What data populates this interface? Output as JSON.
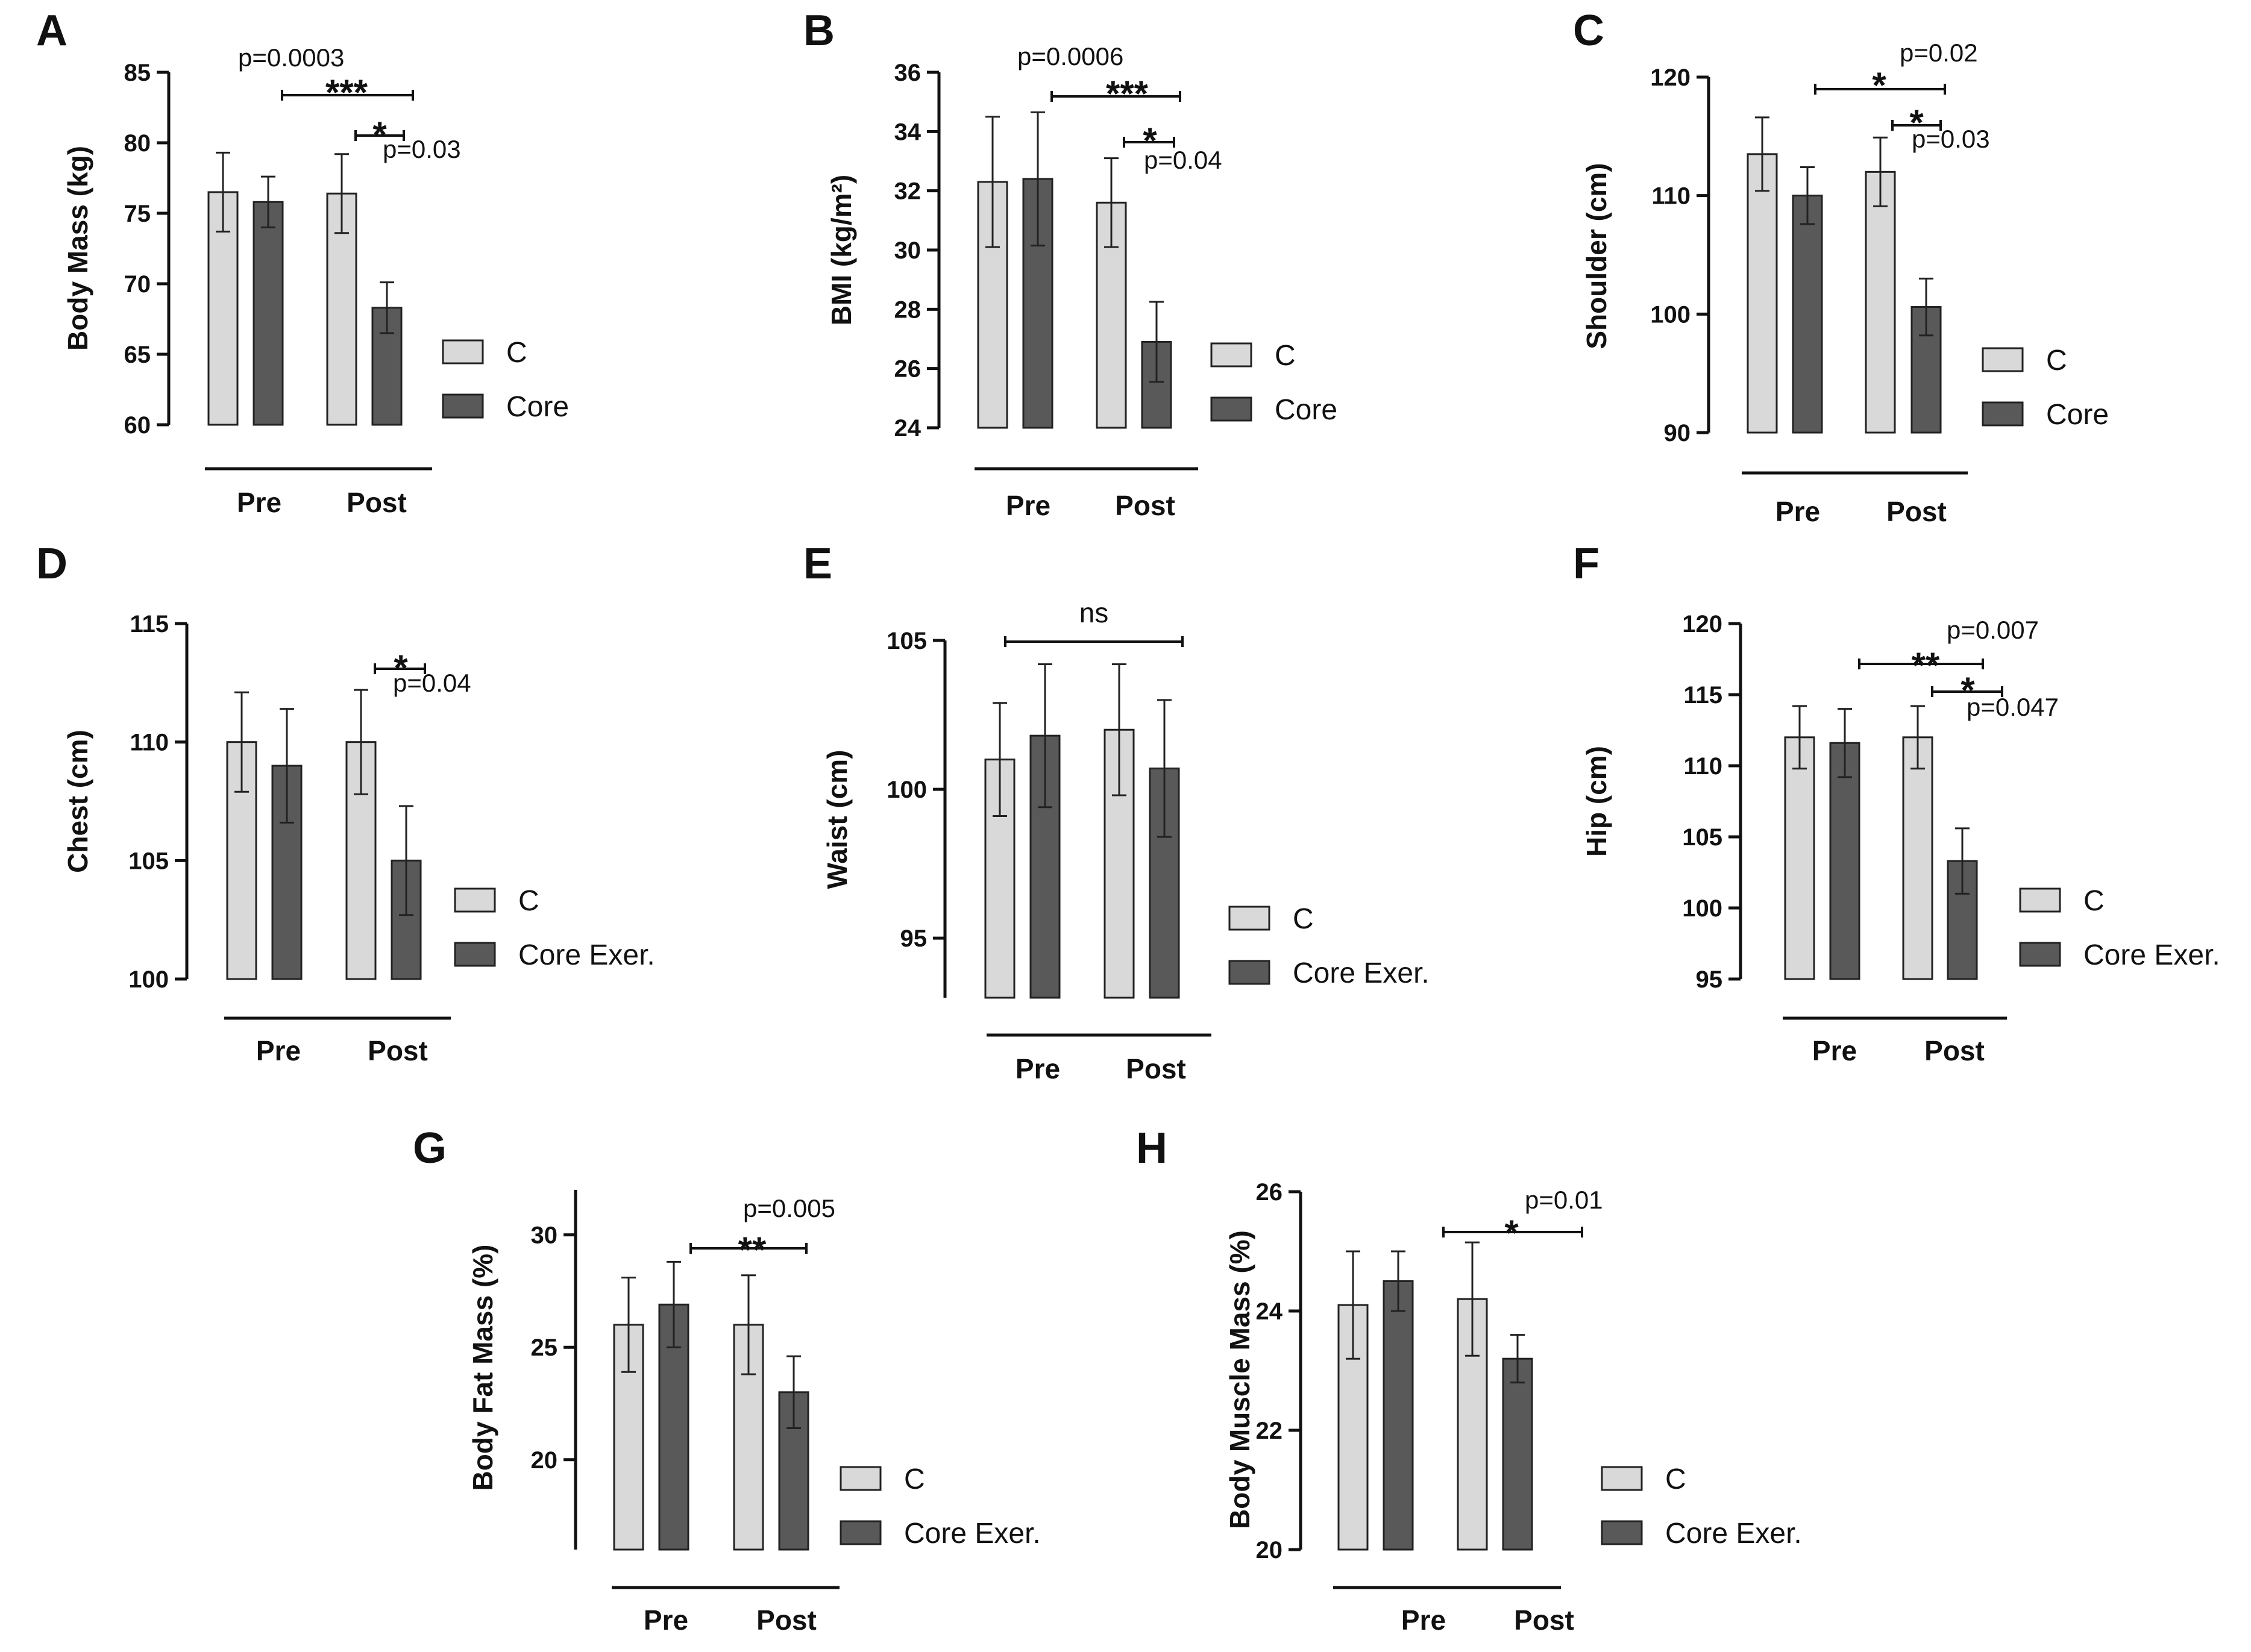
{
  "figure": {
    "bar_colors": {
      "control": "#d9d9d9",
      "core": "#595959"
    },
    "axis_color": "#111111"
  },
  "chart_data": [
    {
      "panel": "A",
      "type": "bar",
      "ylabel": "Body Mass (kg)",
      "categories": [
        "Pre",
        "Post"
      ],
      "ylim": [
        60,
        85
      ],
      "yticks": [
        60,
        65,
        70,
        75,
        80,
        85
      ],
      "series": [
        {
          "name": "C",
          "values": [
            76.5,
            76.4
          ],
          "errors": [
            2.8,
            2.8
          ]
        },
        {
          "name": "Core",
          "values": [
            75.8,
            68.3
          ],
          "errors": [
            1.8,
            1.8
          ]
        }
      ],
      "legend": [
        "C",
        "Core"
      ],
      "annotations": [
        {
          "stars": "***",
          "p": "p=0.0003",
          "from": [
            0,
            1
          ],
          "to": [
            1,
            1
          ]
        },
        {
          "stars": "*",
          "p": "p=0.03",
          "from": [
            1,
            0
          ],
          "to": [
            1,
            1
          ]
        }
      ]
    },
    {
      "panel": "B",
      "type": "bar",
      "ylabel": "BMI (kg/m²)",
      "categories": [
        "Pre",
        "Post"
      ],
      "ylim": [
        24,
        36
      ],
      "yticks": [
        24,
        26,
        28,
        30,
        32,
        34,
        36
      ],
      "series": [
        {
          "name": "C",
          "values": [
            32.3,
            31.6
          ],
          "errors": [
            2.2,
            1.5
          ]
        },
        {
          "name": "Core",
          "values": [
            32.4,
            26.9
          ],
          "errors": [
            2.25,
            1.35
          ]
        }
      ],
      "legend": [
        "C",
        "Core"
      ],
      "annotations": [
        {
          "stars": "***",
          "p": "p=0.0006",
          "from": [
            0,
            1
          ],
          "to": [
            1,
            1
          ]
        },
        {
          "stars": "*",
          "p": "p=0.04",
          "from": [
            1,
            0
          ],
          "to": [
            1,
            1
          ]
        }
      ]
    },
    {
      "panel": "C",
      "type": "bar",
      "ylabel": "Shoulder (cm)",
      "categories": [
        "Pre",
        "Post"
      ],
      "ylim": [
        90,
        120
      ],
      "yticks": [
        90,
        100,
        110,
        120
      ],
      "series": [
        {
          "name": "C",
          "values": [
            113.5,
            112.0
          ],
          "errors": [
            3.1,
            2.9
          ]
        },
        {
          "name": "Core",
          "values": [
            110.0,
            100.6
          ],
          "errors": [
            2.4,
            2.4
          ]
        }
      ],
      "legend": [
        "C",
        "Core"
      ],
      "annotations": [
        {
          "stars": "*",
          "p": "p=0.02",
          "from": [
            0,
            1
          ],
          "to": [
            1,
            1
          ]
        },
        {
          "stars": "*",
          "p": "p=0.03",
          "from": [
            1,
            0
          ],
          "to": [
            1,
            1
          ]
        }
      ]
    },
    {
      "panel": "D",
      "type": "bar",
      "ylabel": "Chest (cm)",
      "categories": [
        "Pre",
        "Post"
      ],
      "ylim": [
        100,
        115
      ],
      "yticks": [
        100,
        105,
        110,
        115
      ],
      "series": [
        {
          "name": "C",
          "values": [
            110.0,
            110.0
          ],
          "errors": [
            2.1,
            2.2
          ]
        },
        {
          "name": "Core Exer.",
          "values": [
            109.0,
            105.0
          ],
          "errors": [
            2.4,
            2.3
          ]
        }
      ],
      "legend": [
        "C",
        "Core Exer."
      ],
      "annotations": [
        {
          "stars": "*",
          "p": "p=0.04",
          "from": [
            1,
            0
          ],
          "to": [
            1,
            1
          ]
        }
      ]
    },
    {
      "panel": "E",
      "type": "bar",
      "ylabel": "Waist (cm)",
      "categories": [
        "Pre",
        "Post"
      ],
      "ylim": [
        93,
        105
      ],
      "yticks": [
        95,
        100,
        105
      ],
      "series": [
        {
          "name": "C",
          "values": [
            101.0,
            102.0
          ],
          "errors": [
            1.9,
            2.2
          ]
        },
        {
          "name": "Core Exer.",
          "values": [
            101.8,
            100.7
          ],
          "errors": [
            2.4,
            2.3
          ]
        }
      ],
      "legend": [
        "C",
        "Core Exer."
      ],
      "annotations": [
        {
          "stars": "ns",
          "p": "",
          "from": [
            0,
            0
          ],
          "to": [
            1,
            1
          ]
        }
      ]
    },
    {
      "panel": "F",
      "type": "bar",
      "ylabel": "Hip (cm)",
      "categories": [
        "Pre",
        "Post"
      ],
      "ylim": [
        95,
        120
      ],
      "yticks": [
        95,
        100,
        105,
        110,
        115,
        120
      ],
      "series": [
        {
          "name": "C",
          "values": [
            112.0,
            112.0
          ],
          "errors": [
            2.2,
            2.2
          ]
        },
        {
          "name": "Core Exer.",
          "values": [
            111.6,
            103.3
          ],
          "errors": [
            2.4,
            2.3
          ]
        }
      ],
      "legend": [
        "C",
        "Core Exer."
      ],
      "annotations": [
        {
          "stars": "**",
          "p": "p=0.007",
          "from": [
            0,
            1
          ],
          "to": [
            1,
            1
          ]
        },
        {
          "stars": "*",
          "p": "p=0.047",
          "from": [
            1,
            0
          ],
          "to": [
            1,
            1
          ]
        }
      ]
    },
    {
      "panel": "G",
      "type": "bar",
      "ylabel": "Body Fat Mass (%)",
      "categories": [
        "Pre",
        "Post"
      ],
      "ylim": [
        16,
        32
      ],
      "yticks": [
        20,
        25,
        30
      ],
      "series": [
        {
          "name": "C",
          "values": [
            26.0,
            26.0
          ],
          "errors": [
            2.1,
            2.2
          ]
        },
        {
          "name": "Core Exer.",
          "values": [
            26.9,
            23.0
          ],
          "errors": [
            1.9,
            1.6
          ]
        }
      ],
      "legend": [
        "C",
        "Core Exer."
      ],
      "annotations": [
        {
          "stars": "**",
          "p": "p=0.005",
          "from": [
            0,
            1
          ],
          "to": [
            1,
            1
          ]
        }
      ]
    },
    {
      "panel": "H",
      "type": "bar",
      "ylabel": "Body Muscle Mass (%)",
      "categories": [
        "Pre",
        "Post"
      ],
      "ylim": [
        20,
        26
      ],
      "yticks": [
        20,
        22,
        24,
        26
      ],
      "series": [
        {
          "name": "C",
          "values": [
            24.1,
            24.2
          ],
          "errors": [
            0.9,
            0.95
          ]
        },
        {
          "name": "Core Exer.",
          "values": [
            24.5,
            23.2
          ],
          "errors": [
            0.5,
            0.4
          ]
        }
      ],
      "legend": [
        "C",
        "Core Exer."
      ],
      "annotations": [
        {
          "stars": "*",
          "p": "p=0.01",
          "from": [
            0,
            1
          ],
          "to": [
            1,
            1
          ]
        }
      ]
    }
  ]
}
